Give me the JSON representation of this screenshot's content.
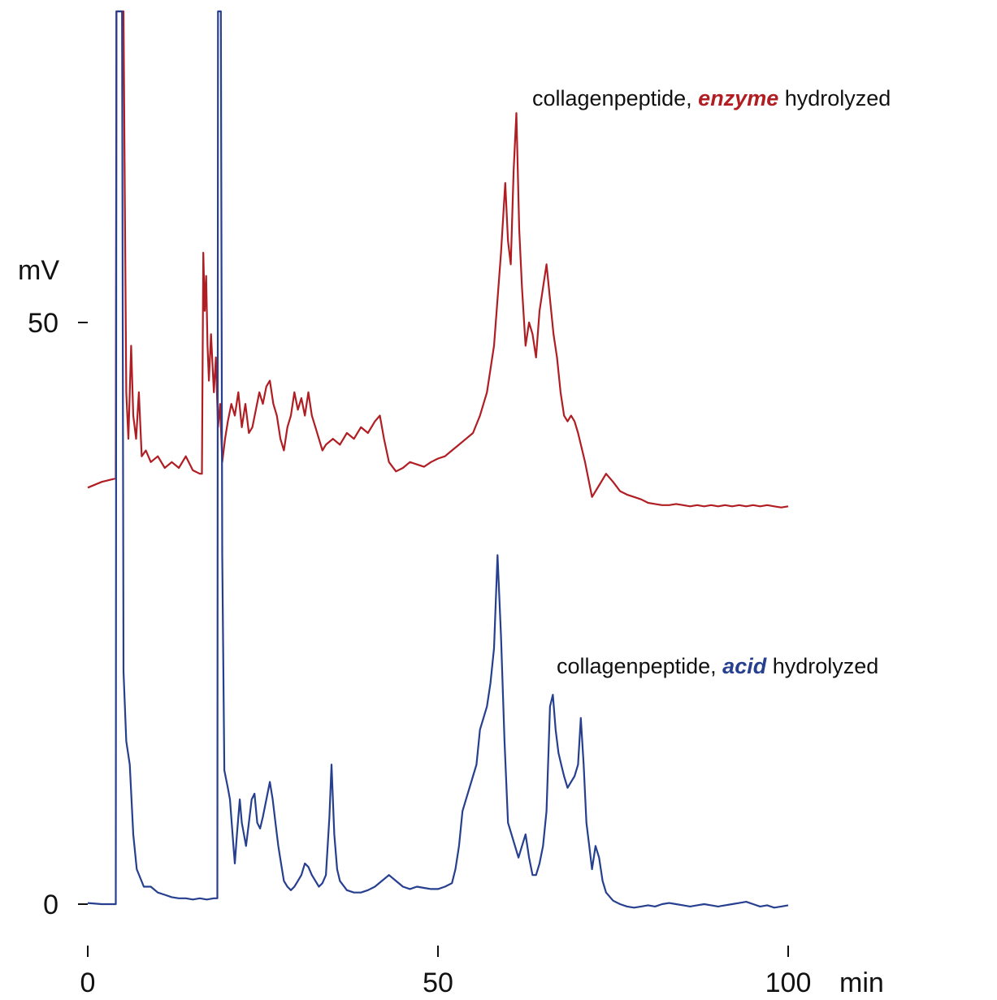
{
  "chart_data": {
    "type": "line",
    "xlabel": "min",
    "ylabel": "mV",
    "xlim": [
      0,
      100
    ],
    "ylim": [
      0,
      120
    ],
    "x_ticks": [
      0,
      50,
      100
    ],
    "y_ticks": [
      0,
      50
    ],
    "x_tick_labels": [
      "0",
      "50",
      "100"
    ],
    "y_tick_labels": [
      "0",
      "50"
    ],
    "grid": false,
    "annotations": [
      {
        "series": "enzyme",
        "prefix": "collagenpeptide, ",
        "emphasis": "enzyme",
        "suffix": " hydrolyzed",
        "color": "#b01e23"
      },
      {
        "series": "acid",
        "prefix": "collagenpeptide, ",
        "emphasis": "acid",
        "suffix": " hydrolyzed",
        "color": "#263f8f"
      }
    ],
    "series": [
      {
        "key": "enzyme",
        "color": "#b01e23",
        "points": [
          [
            0,
            35.8
          ],
          [
            2,
            36.3
          ],
          [
            4,
            36.6
          ],
          [
            4.1,
            138
          ],
          [
            4.4,
            138
          ],
          [
            4.7,
            110
          ],
          [
            4.9,
            121
          ],
          [
            5.1,
            105
          ],
          [
            5.3,
            60
          ],
          [
            5.5,
            44
          ],
          [
            5.8,
            40
          ],
          [
            6.2,
            48
          ],
          [
            6.5,
            42
          ],
          [
            6.9,
            40
          ],
          [
            7.3,
            44
          ],
          [
            7.7,
            38.5
          ],
          [
            8.3,
            39
          ],
          [
            9,
            38
          ],
          [
            10,
            38.5
          ],
          [
            11,
            37.5
          ],
          [
            12,
            38
          ],
          [
            13,
            37.5
          ],
          [
            14,
            38.5
          ],
          [
            15,
            37.3
          ],
          [
            16,
            37
          ],
          [
            16.3,
            37
          ],
          [
            16.5,
            56
          ],
          [
            16.7,
            51
          ],
          [
            16.9,
            54
          ],
          [
            17.1,
            48
          ],
          [
            17.3,
            45
          ],
          [
            17.6,
            49
          ],
          [
            18,
            44
          ],
          [
            18.3,
            47
          ],
          [
            18.6,
            41
          ],
          [
            18.9,
            43
          ],
          [
            19.2,
            38
          ],
          [
            19.6,
            40
          ],
          [
            20,
            41.5
          ],
          [
            20.5,
            43
          ],
          [
            21,
            42
          ],
          [
            21.5,
            44
          ],
          [
            22,
            41
          ],
          [
            22.5,
            43
          ],
          [
            23,
            40.5
          ],
          [
            23.5,
            41
          ],
          [
            24,
            42.5
          ],
          [
            24.5,
            44
          ],
          [
            25,
            43
          ],
          [
            25.5,
            44.5
          ],
          [
            26,
            45
          ],
          [
            26.5,
            43
          ],
          [
            27,
            42
          ],
          [
            27.5,
            40
          ],
          [
            28,
            39
          ],
          [
            28.5,
            41
          ],
          [
            29,
            42
          ],
          [
            29.5,
            44
          ],
          [
            30,
            42.5
          ],
          [
            30.5,
            43.5
          ],
          [
            31,
            42
          ],
          [
            31.5,
            44
          ],
          [
            32,
            42
          ],
          [
            32.5,
            41
          ],
          [
            33,
            40
          ],
          [
            33.5,
            39
          ],
          [
            34,
            39.5
          ],
          [
            35,
            40
          ],
          [
            36,
            39.5
          ],
          [
            37,
            40.5
          ],
          [
            38,
            40
          ],
          [
            39,
            41
          ],
          [
            40,
            40.5
          ],
          [
            41,
            41.5
          ],
          [
            41.7,
            42
          ],
          [
            42.3,
            40
          ],
          [
            43,
            38
          ],
          [
            44,
            37.2
          ],
          [
            45,
            37.5
          ],
          [
            46,
            38
          ],
          [
            47,
            37.8
          ],
          [
            48,
            37.6
          ],
          [
            49,
            38
          ],
          [
            50,
            38.3
          ],
          [
            51,
            38.5
          ],
          [
            52,
            39
          ],
          [
            53,
            39.5
          ],
          [
            54,
            40
          ],
          [
            55,
            40.5
          ],
          [
            56,
            42
          ],
          [
            57,
            44
          ],
          [
            58,
            48
          ],
          [
            59,
            56
          ],
          [
            59.6,
            62
          ],
          [
            60,
            57
          ],
          [
            60.4,
            55
          ],
          [
            60.8,
            63
          ],
          [
            61.2,
            68
          ],
          [
            61.6,
            58
          ],
          [
            62,
            53
          ],
          [
            62.5,
            48
          ],
          [
            63,
            50
          ],
          [
            63.5,
            49
          ],
          [
            64,
            47
          ],
          [
            64.5,
            51
          ],
          [
            65,
            53
          ],
          [
            65.5,
            55
          ],
          [
            66,
            52
          ],
          [
            66.5,
            49
          ],
          [
            67,
            47
          ],
          [
            67.5,
            44
          ],
          [
            68,
            42
          ],
          [
            68.5,
            41.5
          ],
          [
            69,
            42
          ],
          [
            69.5,
            41.5
          ],
          [
            70,
            40.5
          ],
          [
            71,
            38
          ],
          [
            72,
            35
          ],
          [
            73,
            36
          ],
          [
            74,
            37
          ],
          [
            75,
            36.3
          ],
          [
            76,
            35.5
          ],
          [
            77,
            35.2
          ],
          [
            78,
            35
          ],
          [
            79,
            34.8
          ],
          [
            80,
            34.5
          ],
          [
            81,
            34.4
          ],
          [
            82,
            34.3
          ],
          [
            83,
            34.3
          ],
          [
            84,
            34.4
          ],
          [
            85,
            34.3
          ],
          [
            86,
            34.2
          ],
          [
            87,
            34.3
          ],
          [
            88,
            34.2
          ],
          [
            89,
            34.3
          ],
          [
            90,
            34.2
          ],
          [
            91,
            34.3
          ],
          [
            92,
            34.2
          ],
          [
            93,
            34.3
          ],
          [
            94,
            34.2
          ],
          [
            95,
            34.3
          ],
          [
            96,
            34.2
          ],
          [
            97,
            34.3
          ],
          [
            98,
            34.2
          ],
          [
            99,
            34.1
          ],
          [
            100,
            34.2
          ]
        ]
      },
      {
        "key": "acid",
        "color": "#263f8f",
        "points": [
          [
            0,
            0.1
          ],
          [
            2,
            0
          ],
          [
            4,
            0
          ],
          [
            4.1,
            120
          ],
          [
            4.5,
            120
          ],
          [
            4.7,
            90
          ],
          [
            4.9,
            80
          ],
          [
            5.1,
            20
          ],
          [
            5.5,
            14
          ],
          [
            6,
            12
          ],
          [
            6.5,
            6
          ],
          [
            7,
            3
          ],
          [
            8,
            1.5
          ],
          [
            9,
            1.5
          ],
          [
            10,
            1
          ],
          [
            11,
            0.8
          ],
          [
            12,
            0.6
          ],
          [
            13,
            0.5
          ],
          [
            14,
            0.5
          ],
          [
            15,
            0.4
          ],
          [
            16,
            0.5
          ],
          [
            17,
            0.4
          ],
          [
            18,
            0.5
          ],
          [
            18.5,
            0.5
          ],
          [
            18.6,
            120
          ],
          [
            19,
            118
          ],
          [
            19.2,
            30
          ],
          [
            19.5,
            11.5
          ],
          [
            20,
            10
          ],
          [
            20.3,
            9
          ],
          [
            20.8,
            5
          ],
          [
            21,
            3.5
          ],
          [
            21.3,
            6
          ],
          [
            21.7,
            9
          ],
          [
            22,
            7
          ],
          [
            22.3,
            6
          ],
          [
            22.6,
            5
          ],
          [
            23,
            7
          ],
          [
            23.4,
            9
          ],
          [
            23.8,
            9.5
          ],
          [
            24.2,
            7
          ],
          [
            24.6,
            6.5
          ],
          [
            25,
            7.5
          ],
          [
            25.5,
            9
          ],
          [
            26,
            10.5
          ],
          [
            26.4,
            9
          ],
          [
            26.8,
            7
          ],
          [
            27.2,
            5
          ],
          [
            27.6,
            3.5
          ],
          [
            28,
            2
          ],
          [
            28.5,
            1.5
          ],
          [
            29,
            1.2
          ],
          [
            29.5,
            1.5
          ],
          [
            30,
            2
          ],
          [
            30.5,
            2.5
          ],
          [
            31,
            3.5
          ],
          [
            31.5,
            3.2
          ],
          [
            32,
            2.5
          ],
          [
            32.5,
            2
          ],
          [
            33,
            1.5
          ],
          [
            33.5,
            1.8
          ],
          [
            34,
            2.5
          ],
          [
            34.5,
            7.5
          ],
          [
            34.8,
            12
          ],
          [
            35.2,
            6
          ],
          [
            35.6,
            3
          ],
          [
            36,
            2
          ],
          [
            37,
            1.2
          ],
          [
            38,
            1
          ],
          [
            39,
            1
          ],
          [
            40,
            1.2
          ],
          [
            41,
            1.5
          ],
          [
            42,
            2
          ],
          [
            43,
            2.5
          ],
          [
            44,
            2
          ],
          [
            45,
            1.5
          ],
          [
            46,
            1.3
          ],
          [
            47,
            1.5
          ],
          [
            48,
            1.4
          ],
          [
            49,
            1.3
          ],
          [
            50,
            1.3
          ],
          [
            51,
            1.5
          ],
          [
            52,
            1.8
          ],
          [
            52.5,
            3
          ],
          [
            53,
            5
          ],
          [
            53.5,
            8
          ],
          [
            54,
            9
          ],
          [
            54.5,
            10
          ],
          [
            55,
            11
          ],
          [
            55.5,
            12
          ],
          [
            56,
            15
          ],
          [
            56.5,
            16
          ],
          [
            57,
            17
          ],
          [
            57.5,
            19
          ],
          [
            58,
            22
          ],
          [
            58.5,
            30
          ],
          [
            59,
            23
          ],
          [
            59.5,
            14
          ],
          [
            60,
            7
          ],
          [
            60.5,
            6
          ],
          [
            61,
            5
          ],
          [
            61.5,
            4
          ],
          [
            62,
            5
          ],
          [
            62.5,
            6
          ],
          [
            63,
            4
          ],
          [
            63.5,
            2.5
          ],
          [
            64,
            2.5
          ],
          [
            64.5,
            3.5
          ],
          [
            65,
            5
          ],
          [
            65.5,
            8
          ],
          [
            66,
            17
          ],
          [
            66.4,
            18
          ],
          [
            66.8,
            15
          ],
          [
            67.2,
            13
          ],
          [
            67.6,
            12
          ],
          [
            68,
            11
          ],
          [
            68.5,
            10
          ],
          [
            69,
            10.5
          ],
          [
            69.5,
            11
          ],
          [
            70,
            12
          ],
          [
            70.4,
            16
          ],
          [
            70.8,
            12
          ],
          [
            71.2,
            7
          ],
          [
            71.6,
            5
          ],
          [
            72,
            3
          ],
          [
            72.5,
            5
          ],
          [
            73,
            4
          ],
          [
            73.5,
            2
          ],
          [
            74,
            1
          ],
          [
            75,
            0.3
          ],
          [
            76,
            0
          ],
          [
            77,
            -0.2
          ],
          [
            78,
            -0.3
          ],
          [
            79,
            -0.2
          ],
          [
            80,
            -0.1
          ],
          [
            81,
            -0.2
          ],
          [
            82,
            0
          ],
          [
            83,
            0.1
          ],
          [
            84,
            0
          ],
          [
            85,
            -0.1
          ],
          [
            86,
            -0.2
          ],
          [
            87,
            -0.1
          ],
          [
            88,
            0
          ],
          [
            89,
            -0.1
          ],
          [
            90,
            -0.2
          ],
          [
            91,
            -0.1
          ],
          [
            92,
            0
          ],
          [
            93,
            0.1
          ],
          [
            94,
            0.2
          ],
          [
            95,
            0
          ],
          [
            96,
            -0.2
          ],
          [
            97,
            -0.1
          ],
          [
            98,
            -0.3
          ],
          [
            99,
            -0.2
          ],
          [
            100,
            -0.1
          ]
        ]
      }
    ]
  }
}
